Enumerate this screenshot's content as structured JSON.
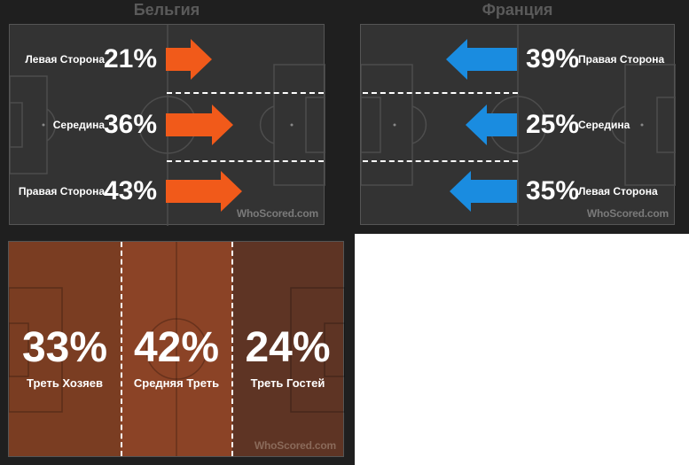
{
  "belgium": {
    "title": "Бельгия",
    "rows": [
      {
        "percent": "21%",
        "label": "Левая Сторона"
      },
      {
        "percent": "36%",
        "label": "Середина"
      },
      {
        "percent": "43%",
        "label": "Правая Сторона"
      }
    ],
    "arrow_color": "#f15a1a",
    "watermark": "WhoScored.com"
  },
  "france": {
    "title": "Франция",
    "rows": [
      {
        "percent": "39%",
        "label": "Правая Сторона"
      },
      {
        "percent": "25%",
        "label": "Середина"
      },
      {
        "percent": "35%",
        "label": "Левая Сторона"
      }
    ],
    "arrow_color": "#1a8ce0",
    "watermark": "WhoScored.com"
  },
  "thirds": {
    "zones": [
      {
        "percent": "33%",
        "label": "Треть Хозяев"
      },
      {
        "percent": "42%",
        "label": "Средняя Треть"
      },
      {
        "percent": "24%",
        "label": "Треть Гостей"
      }
    ],
    "colors": [
      "#7a3d22",
      "#8b4326",
      "#5e3424"
    ],
    "watermark": "WhoScored.com"
  }
}
